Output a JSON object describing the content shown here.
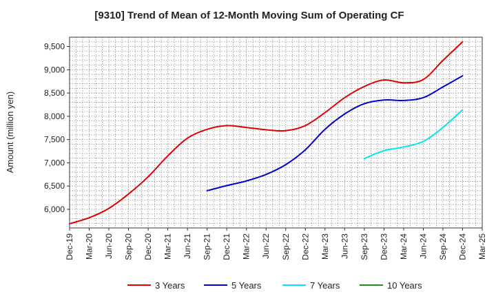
{
  "chart_data": {
    "type": "line",
    "title": "[9310]  Trend of Mean of 12-Month Moving Sum of Operating CF",
    "xlabel": "",
    "ylabel": "Amount (million yen)",
    "ylim": [
      5600,
      9700
    ],
    "yticks": [
      6000,
      6500,
      7000,
      7500,
      8000,
      8500,
      9000,
      9500
    ],
    "ytick_labels": [
      "6,000",
      "6,500",
      "7,000",
      "7,500",
      "8,000",
      "8,500",
      "9,000",
      "9,500"
    ],
    "xticks": [
      "Dec-19",
      "Mar-20",
      "Jun-20",
      "Sep-20",
      "Dec-20",
      "Mar-21",
      "Jun-21",
      "Sep-21",
      "Dec-21",
      "Mar-22",
      "Jun-22",
      "Sep-22",
      "Dec-22",
      "Mar-23",
      "Jun-23",
      "Sep-23",
      "Dec-23",
      "Mar-24",
      "Jun-24",
      "Sep-24",
      "Dec-24",
      "Mar-25"
    ],
    "grid": true,
    "series": [
      {
        "name": "3 Years",
        "color": "#e00000",
        "points": [
          [
            "Dec-19",
            5690
          ],
          [
            "Mar-20",
            5820
          ],
          [
            "Jun-20",
            6020
          ],
          [
            "Sep-20",
            6330
          ],
          [
            "Dec-20",
            6700
          ],
          [
            "Mar-21",
            7150
          ],
          [
            "Jun-21",
            7530
          ],
          [
            "Sep-21",
            7720
          ],
          [
            "Dec-21",
            7800
          ],
          [
            "Mar-22",
            7760
          ],
          [
            "Jun-22",
            7710
          ],
          [
            "Sep-22",
            7690
          ],
          [
            "Dec-22",
            7800
          ],
          [
            "Mar-23",
            8080
          ],
          [
            "Jun-23",
            8400
          ],
          [
            "Sep-23",
            8640
          ],
          [
            "Dec-23",
            8780
          ],
          [
            "Mar-24",
            8720
          ],
          [
            "Jun-24",
            8790
          ],
          [
            "Sep-24",
            9200
          ],
          [
            "Dec-24",
            9600
          ]
        ]
      },
      {
        "name": "5 Years",
        "color": "#0000cc",
        "points": [
          [
            "Sep-21",
            6400
          ],
          [
            "Dec-21",
            6510
          ],
          [
            "Mar-22",
            6610
          ],
          [
            "Jun-22",
            6750
          ],
          [
            "Sep-22",
            6960
          ],
          [
            "Dec-22",
            7280
          ],
          [
            "Mar-23",
            7720
          ],
          [
            "Jun-23",
            8050
          ],
          [
            "Sep-23",
            8270
          ],
          [
            "Dec-23",
            8350
          ],
          [
            "Mar-24",
            8340
          ],
          [
            "Jun-24",
            8400
          ],
          [
            "Sep-24",
            8630
          ],
          [
            "Dec-24",
            8870
          ]
        ]
      },
      {
        "name": "7 Years",
        "color": "#00e5ee",
        "points": [
          [
            "Sep-23",
            7090
          ],
          [
            "Dec-23",
            7260
          ],
          [
            "Mar-24",
            7340
          ],
          [
            "Jun-24",
            7460
          ],
          [
            "Sep-24",
            7760
          ],
          [
            "Dec-24",
            8140
          ]
        ]
      },
      {
        "name": "10 Years",
        "color": "#228b22",
        "points": []
      }
    ],
    "legend": [
      "3 Years",
      "5 Years",
      "7 Years",
      "10 Years"
    ],
    "legend_position": "bottom"
  }
}
